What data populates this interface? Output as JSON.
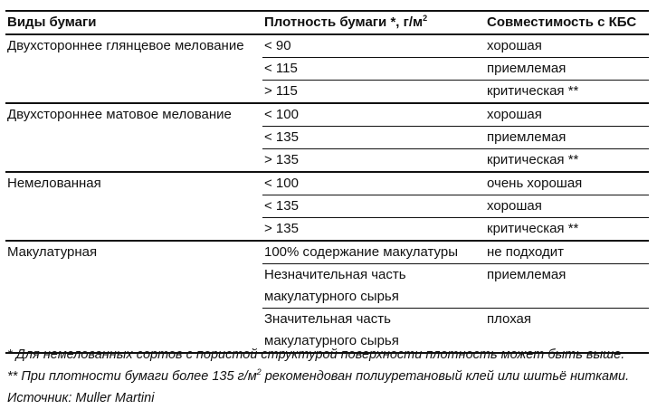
{
  "table": {
    "headers": {
      "type": "Виды бумаги",
      "density": "Плотность бумаги *, г/м",
      "density_sup": "2",
      "compat": "Совместимость с КБС"
    },
    "groups": [
      {
        "type": "Двухстороннее глянцевое мелование",
        "rows": [
          {
            "density": "< 90",
            "compat": "хорошая"
          },
          {
            "density": "< 115",
            "compat": "приемлемая"
          },
          {
            "density": "> 115",
            "compat": "критическая **"
          }
        ]
      },
      {
        "type": "Двухстороннее матовое мелование",
        "rows": [
          {
            "density": "< 100",
            "compat": "хорошая"
          },
          {
            "density": "< 135",
            "compat": "приемлемая"
          },
          {
            "density": "> 135",
            "compat": "критическая **"
          }
        ]
      },
      {
        "type": "Немелованная",
        "rows": [
          {
            "density": "< 100",
            "compat": "очень хорошая"
          },
          {
            "density": "< 135",
            "compat": "хорошая"
          },
          {
            "density": "> 135",
            "compat": "критическая **"
          }
        ]
      },
      {
        "type": "Макулатурная",
        "rows": [
          {
            "density": "100% содержание макулатуры",
            "compat": "не подходит"
          },
          {
            "density": "Незначительная часть",
            "density2": "макулатурного сырья",
            "compat": "приемлемая"
          },
          {
            "density": "Значительная часть",
            "density2": "макулатурного сырья",
            "compat": "плохая"
          }
        ]
      }
    ]
  },
  "notes": {
    "n1": "* Для немелованных сортов с пористой структурой поверхности плотность может быть выше.",
    "n2a": "** При плотности бумаги более 135 г/м",
    "n2sup": "2",
    "n2b": " рекомендован полиуретановый клей или шитьё нитками.",
    "source": "Источник: Muller Martini"
  }
}
